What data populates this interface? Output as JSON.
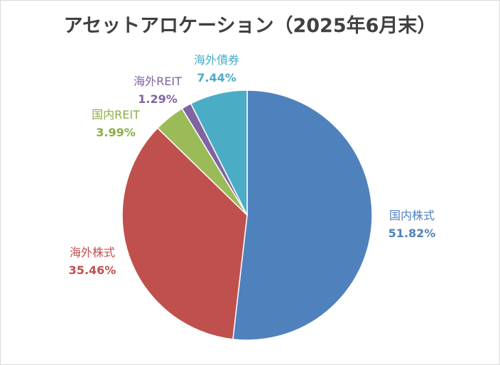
{
  "chart_data": {
    "type": "pie",
    "title": "アセットアロケーション（2025年6月末）",
    "slices": [
      {
        "label": "国内株式",
        "value": 51.82,
        "value_label": "51.82%",
        "color": "#4F81BD",
        "text_color": "#4F81BD"
      },
      {
        "label": "海外株式",
        "value": 35.46,
        "value_label": "35.46%",
        "color": "#C0504D",
        "text_color": "#C0504D"
      },
      {
        "label": "国内REIT",
        "value": 3.99,
        "value_label": "3.99%",
        "color": "#9BBB59",
        "text_color": "#8AAE43"
      },
      {
        "label": "海外REIT",
        "value": 1.29,
        "value_label": "1.29%",
        "color": "#8064A2",
        "text_color": "#8064A2"
      },
      {
        "label": "海外債券",
        "value": 7.44,
        "value_label": "7.44%",
        "color": "#4BACC6",
        "text_color": "#4BACC6"
      }
    ],
    "start": "12 o'clock",
    "direction": "clockwise",
    "legend": "none"
  }
}
